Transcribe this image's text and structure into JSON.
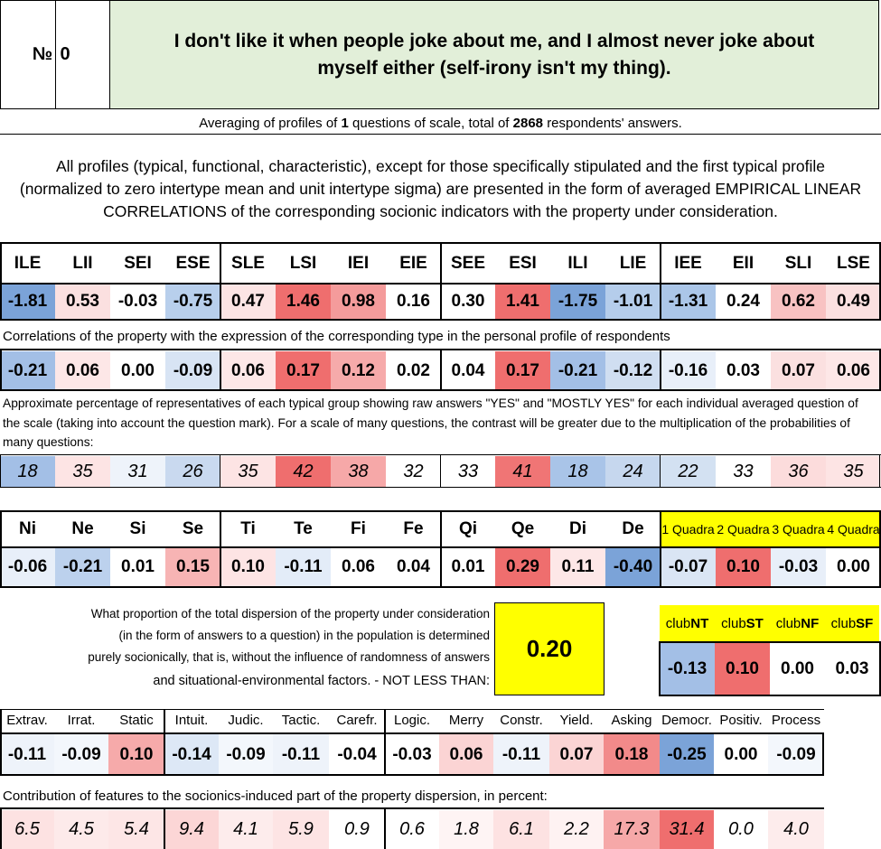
{
  "header": {
    "number_label": "№",
    "number_value": "0",
    "title": "I don't like it when people joke about me, and I almost never joke about myself either (self-irony isn't my thing)."
  },
  "averaging": {
    "prefix": "Averaging of profiles of",
    "questions": "1",
    "middle": "questions of scale, total of",
    "respondents": "2868",
    "suffix": "respondents' answers."
  },
  "description": "All profiles (typical, functional, characteristic), except for those specifically stipulated and the first typical profile (normalized to zero intertype mean and unit intertype sigma) are presented in the form of averaged EMPIRICAL LINEAR CORRELATIONS of the corresponding socionic indicators with the property under consideration.",
  "types": {
    "headers": [
      "ILE",
      "LII",
      "SEI",
      "ESE",
      "SLE",
      "LSI",
      "IEI",
      "EIE",
      "SEE",
      "ESI",
      "ILI",
      "LIE",
      "IEE",
      "EII",
      "SLI",
      "LSE"
    ],
    "values": [
      "-1.81",
      "0.53",
      "-0.03",
      "-0.75",
      "0.47",
      "1.46",
      "0.98",
      "0.16",
      "0.30",
      "1.41",
      "-1.75",
      "-1.01",
      "-1.31",
      "0.24",
      "0.62",
      "0.49"
    ],
    "colors": [
      "#7ba3d8",
      "#fbe0e0",
      "#ffffff",
      "#b8cfec",
      "#fce4e4",
      "#ef6e6e",
      "#f49b9b",
      "#ffffff",
      "#ffffff",
      "#ef6e6e",
      "#7ba3d8",
      "#b5cdeb",
      "#abc6e8",
      "#ffffff",
      "#f8c2c2",
      "#fbe0e0"
    ],
    "corr_caption": "Correlations of the property with the expression of the corresponding type in the personal profile of respondents",
    "corr_values": [
      "-0.21",
      "0.06",
      "0.00",
      "-0.09",
      "0.06",
      "0.17",
      "0.12",
      "0.02",
      "0.04",
      "0.17",
      "-0.21",
      "-0.12",
      "-0.16",
      "0.03",
      "0.07",
      "0.06"
    ],
    "corr_colors": [
      "#a3bfe6",
      "#fde7e7",
      "#ffffff",
      "#d8e4f4",
      "#fde7e7",
      "#ef6e6e",
      "#f6aaaa",
      "#ffffff",
      "#ffffff",
      "#ef6e6e",
      "#a3bfe6",
      "#d0def1",
      "#e8eff9",
      "#ffffff",
      "#fbe0e0",
      "#fde7e7"
    ],
    "pct_caption": "Approximate percentage of representatives of each typical group showing raw answers \"YES\" and \"MOSTLY YES\" for each individual averaged question of the scale (taking into account the question mark). For a scale of many questions, the contrast will be greater due to the multiplication of the probabilities of many questions:",
    "pct_values": [
      "18",
      "35",
      "31",
      "26",
      "35",
      "42",
      "38",
      "32",
      "33",
      "41",
      "18",
      "24",
      "22",
      "33",
      "36",
      "35"
    ],
    "pct_colors": [
      "#a3bfe6",
      "#fde4e4",
      "#eef3fa",
      "#c9d9ef",
      "#fde4e4",
      "#ef6e6e",
      "#f6a8a8",
      "#ffffff",
      "#ffffff",
      "#f07575",
      "#a9c4e8",
      "#c6d7ee",
      "#d3e1f2",
      "#ffffff",
      "#fcdcdc",
      "#fde4e4"
    ]
  },
  "functions": {
    "headers": [
      "Ni",
      "Ne",
      "Si",
      "Se",
      "Ti",
      "Te",
      "Fi",
      "Fe",
      "Qi",
      "Qe",
      "Di",
      "De"
    ],
    "values": [
      "-0.06",
      "-0.21",
      "0.01",
      "0.15",
      "0.10",
      "-0.11",
      "0.06",
      "0.04",
      "0.01",
      "0.29",
      "0.11",
      "-0.40"
    ],
    "colors": [
      "#e8eff9",
      "#bcd1ed",
      "#ffffff",
      "#f7b4b4",
      "#fde4e4",
      "#e3ecf8",
      "#ffffff",
      "#ffffff",
      "#ffffff",
      "#ef6e6e",
      "#fde7e7",
      "#7ba3d8"
    ],
    "quadra_headers": [
      "1 Quadra",
      "2 Quadra",
      "3 Quadra",
      "4 Quadra"
    ],
    "quadra_values": [
      "-0.07",
      "0.10",
      "-0.03",
      "0.00"
    ],
    "quadra_colors": [
      "#dae5f4",
      "#ef6e6e",
      "#e8eff9",
      "#ffffff"
    ]
  },
  "dispersion": {
    "text_lines": [
      "What proportion of the total dispersion of the property under consideration",
      "(in the form of answers to a question) in the population is determined",
      "purely socionically, that is, without the influence of randomness of answers",
      "and situational-environmental factors. - NOT LESS THAN:"
    ],
    "value": "0.20"
  },
  "clubs": {
    "headers": [
      [
        "club",
        "NT"
      ],
      [
        "club",
        "ST"
      ],
      [
        "club",
        "NF"
      ],
      [
        "club",
        "SF"
      ]
    ],
    "values": [
      "-0.13",
      "0.10",
      "0.00",
      "0.03"
    ],
    "colors": [
      "#a3bfe6",
      "#ef6e6e",
      "#ffffff",
      "#ffffff"
    ]
  },
  "traits": {
    "headers": [
      "Extrav.",
      "Irrat.",
      "Static",
      "Intuit.",
      "Judic.",
      "Tactic.",
      "Carefr.",
      "Logic.",
      "Merry",
      "Constr.",
      "Yield.",
      "Asking",
      "Democr.",
      "Positiv.",
      "Process"
    ],
    "values": [
      "-0.11",
      "-0.09",
      "0.10",
      "-0.14",
      "-0.09",
      "-0.11",
      "-0.04",
      "-0.03",
      "0.06",
      "-0.11",
      "0.07",
      "0.18",
      "-0.25",
      "0.00",
      "-0.09"
    ],
    "colors": [
      "#eef3fa",
      "#f3f7fc",
      "#f6aaaa",
      "#dde8f6",
      "#f3f7fc",
      "#eef3fa",
      "#ffffff",
      "#ffffff",
      "#fbd4d4",
      "#eef3fa",
      "#fbd4d4",
      "#f28a8a",
      "#7ba3d8",
      "#ffffff",
      "#f3f7fc"
    ],
    "contrib_caption": "Contribution of features to the socionics-induced part of the property dispersion, in percent:",
    "contrib_values": [
      "6.5",
      "4.5",
      "5.4",
      "9.4",
      "4.1",
      "5.9",
      "0.9",
      "0.6",
      "1.8",
      "6.1",
      "2.2",
      "17.3",
      "31.4",
      "0.0",
      "4.0"
    ],
    "contrib_colors": [
      "#fde2e2",
      "#fdeaea",
      "#fde6e6",
      "#fcd6d6",
      "#fdecec",
      "#fde4e4",
      "#ffffff",
      "#ffffff",
      "#fef4f4",
      "#fde2e2",
      "#fef2f2",
      "#f6a8a8",
      "#ef6e6e",
      "#ffffff",
      "#fdecec"
    ]
  }
}
